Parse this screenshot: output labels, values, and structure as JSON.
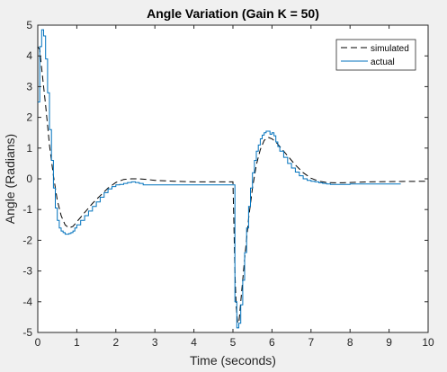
{
  "chart_data": {
    "type": "line",
    "title": "Angle Variation (Gain K = 50)",
    "xlabel": "Time (seconds)",
    "ylabel": "Angle (Radians)",
    "xlim": [
      0,
      10
    ],
    "ylim": [
      -5,
      5
    ],
    "xticks": [
      0,
      1,
      2,
      3,
      4,
      5,
      6,
      7,
      8,
      9,
      10
    ],
    "yticks": [
      -5,
      -4,
      -3,
      -2,
      -1,
      0,
      1,
      2,
      3,
      4,
      5
    ],
    "xtick_labels": [
      "0",
      "1",
      "2",
      "3",
      "4",
      "5",
      "6",
      "7",
      "8",
      "9",
      "10"
    ],
    "ytick_labels": [
      "-5",
      "-4",
      "-3",
      "-2",
      "-1",
      "0",
      "1",
      "2",
      "3",
      "4",
      "5"
    ],
    "grid": false,
    "legend_position": "top-right",
    "series": [
      {
        "name": "simulated",
        "color": "#000000",
        "style": "dashed",
        "x": [
          0,
          0.05,
          0.1,
          0.2,
          0.3,
          0.4,
          0.5,
          0.6,
          0.7,
          0.8,
          0.9,
          1.0,
          1.2,
          1.4,
          1.6,
          1.8,
          2.0,
          2.2,
          2.4,
          2.6,
          2.8,
          3.0,
          3.5,
          4.0,
          4.5,
          5.0,
          5.05,
          5.08,
          5.12,
          5.16,
          5.2,
          5.3,
          5.4,
          5.5,
          5.6,
          5.7,
          5.8,
          5.9,
          6.0,
          6.1,
          6.2,
          6.3,
          6.4,
          6.5,
          6.6,
          6.8,
          7.0,
          7.2,
          7.4,
          7.6,
          7.8,
          8.0,
          8.5,
          9.0,
          10.0
        ],
        "y": [
          4.3,
          4.2,
          3.6,
          2.4,
          1.1,
          0.1,
          -0.7,
          -1.2,
          -1.5,
          -1.6,
          -1.55,
          -1.4,
          -1.1,
          -0.8,
          -0.55,
          -0.3,
          -0.12,
          -0.02,
          0.0,
          0.0,
          -0.02,
          -0.05,
          -0.08,
          -0.1,
          -0.1,
          -0.1,
          -3.0,
          -4.1,
          -4.7,
          -4.6,
          -4.0,
          -2.6,
          -1.3,
          -0.3,
          0.45,
          0.95,
          1.25,
          1.35,
          1.3,
          1.2,
          1.05,
          0.9,
          0.75,
          0.6,
          0.45,
          0.2,
          0.02,
          -0.08,
          -0.12,
          -0.13,
          -0.13,
          -0.12,
          -0.1,
          -0.09,
          -0.08
        ]
      },
      {
        "name": "actual",
        "color": "#0072bd",
        "style": "solid",
        "x": [
          0,
          0.05,
          0.1,
          0.15,
          0.2,
          0.25,
          0.3,
          0.35,
          0.4,
          0.45,
          0.5,
          0.55,
          0.6,
          0.65,
          0.7,
          0.75,
          0.8,
          0.85,
          0.9,
          0.95,
          1.0,
          1.1,
          1.2,
          1.3,
          1.4,
          1.5,
          1.6,
          1.7,
          1.8,
          1.9,
          2.0,
          2.1,
          2.2,
          2.3,
          2.4,
          2.5,
          2.6,
          2.7,
          2.8,
          2.9,
          3.0,
          3.5,
          4.0,
          4.5,
          5.0,
          5.05,
          5.1,
          5.15,
          5.2,
          5.25,
          5.3,
          5.35,
          5.4,
          5.45,
          5.5,
          5.55,
          5.6,
          5.65,
          5.7,
          5.75,
          5.8,
          5.85,
          5.9,
          5.95,
          6.0,
          6.05,
          6.1,
          6.15,
          6.2,
          6.3,
          6.4,
          6.5,
          6.6,
          6.7,
          6.8,
          6.9,
          7.0,
          7.1,
          7.2,
          7.3,
          7.4,
          7.5,
          7.6,
          7.7,
          7.8,
          8.0,
          8.5,
          9.0,
          9.3
        ],
        "y": [
          2.5,
          4.3,
          4.85,
          4.65,
          3.9,
          2.8,
          1.6,
          0.6,
          -0.3,
          -0.95,
          -1.35,
          -1.6,
          -1.7,
          -1.75,
          -1.8,
          -1.8,
          -1.78,
          -1.75,
          -1.7,
          -1.6,
          -1.5,
          -1.35,
          -1.2,
          -1.05,
          -0.9,
          -0.75,
          -0.6,
          -0.45,
          -0.33,
          -0.25,
          -0.2,
          -0.18,
          -0.15,
          -0.12,
          -0.1,
          -0.12,
          -0.15,
          -0.2,
          -0.2,
          -0.2,
          -0.2,
          -0.2,
          -0.2,
          -0.2,
          -0.2,
          -4.0,
          -4.85,
          -4.7,
          -4.1,
          -3.3,
          -2.4,
          -1.6,
          -0.9,
          -0.3,
          0.2,
          0.6,
          0.9,
          1.1,
          1.3,
          1.42,
          1.5,
          1.55,
          1.55,
          1.45,
          1.5,
          1.4,
          1.2,
          1.05,
          0.9,
          0.7,
          0.5,
          0.35,
          0.22,
          0.1,
          0.0,
          -0.05,
          -0.08,
          -0.1,
          -0.13,
          -0.15,
          -0.17,
          -0.18,
          -0.18,
          -0.18,
          -0.18,
          -0.17,
          -0.17,
          -0.17,
          -0.17
        ]
      }
    ]
  }
}
